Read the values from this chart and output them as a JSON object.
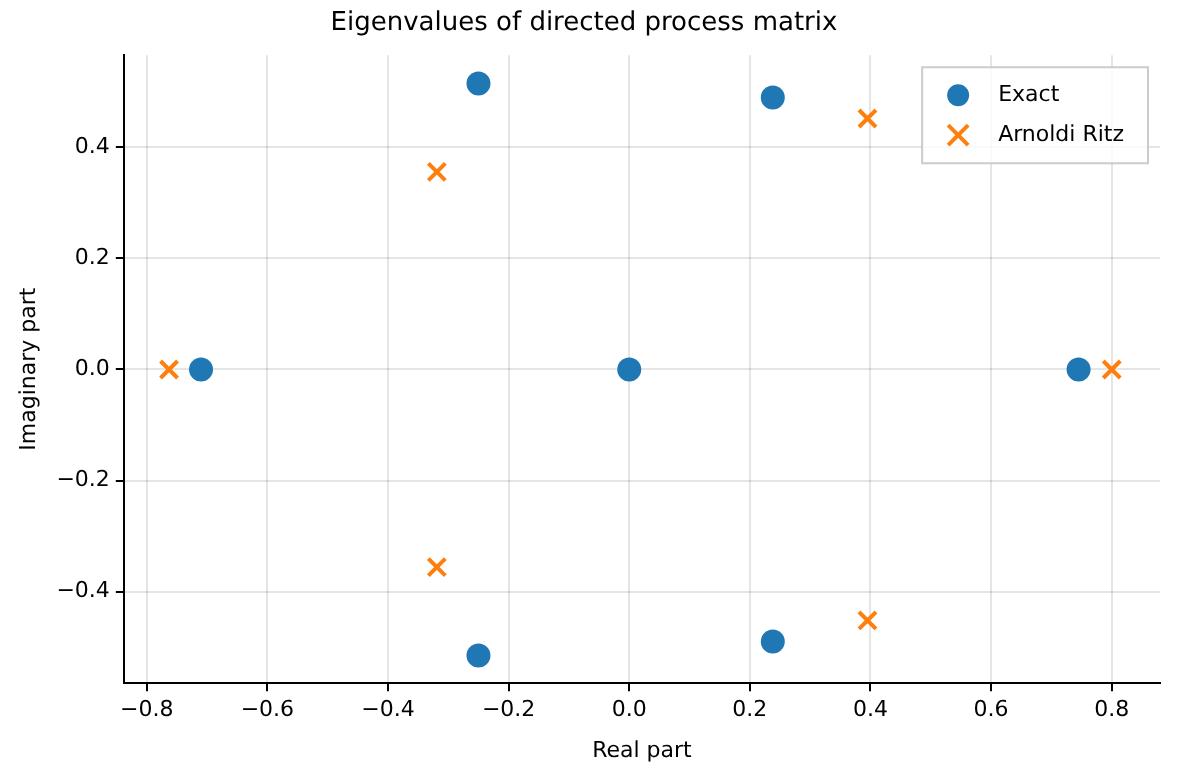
{
  "chart_data": {
    "type": "scatter",
    "title": "Eigenvalues of directed process matrix",
    "xlabel": "Real part",
    "ylabel": "Imaginary part",
    "xlim": [
      -0.838,
      0.88
    ],
    "ylim": [
      -0.565,
      0.566
    ],
    "xticks": [
      {
        "value": -0.8,
        "label": "−0.8"
      },
      {
        "value": -0.6,
        "label": "−0.6"
      },
      {
        "value": -0.4,
        "label": "−0.4"
      },
      {
        "value": -0.2,
        "label": "−0.2"
      },
      {
        "value": 0,
        "label": "0.0"
      },
      {
        "value": 0.2,
        "label": "0.2"
      },
      {
        "value": 0.4,
        "label": "0.4"
      },
      {
        "value": 0.6,
        "label": "0.6"
      },
      {
        "value": 0.8,
        "label": "0.8"
      }
    ],
    "yticks": [
      {
        "value": -0.4,
        "label": "−0.4"
      },
      {
        "value": -0.2,
        "label": "−0.2"
      },
      {
        "value": 0,
        "label": "0.0"
      },
      {
        "value": 0.2,
        "label": "0.2"
      },
      {
        "value": 0.4,
        "label": "0.4"
      }
    ],
    "grid": true,
    "legend": "top right",
    "series": [
      {
        "name": "Exact",
        "color": "#1f77b4",
        "marker": "circle",
        "x": [
          -0.71,
          -0.25,
          -0.25,
          0,
          0.238,
          0.238,
          0.745
        ],
        "values": [
          0,
          0.515,
          -0.515,
          0,
          0.49,
          -0.49,
          0
        ]
      },
      {
        "name": "Arnoldi Ritz",
        "color": "#ff7f0e",
        "marker": "cross",
        "x": [
          -0.763,
          -0.319,
          -0.319,
          0.395,
          0.395,
          0.8
        ],
        "values": [
          0,
          0.356,
          -0.356,
          0.452,
          -0.452,
          0
        ]
      }
    ]
  }
}
